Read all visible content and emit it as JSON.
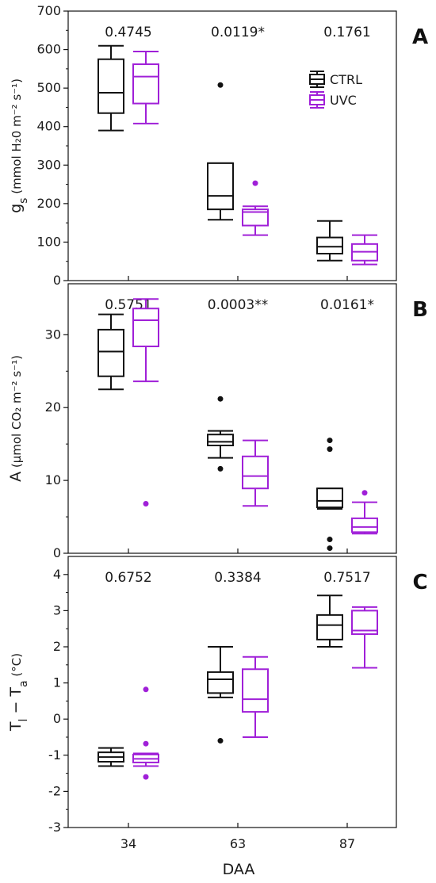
{
  "colors": {
    "ctrl": "#111111",
    "uvc": "#a020d8"
  },
  "legend": [
    {
      "label": "CTRL",
      "color": "#111111"
    },
    {
      "label": "UVC",
      "color": "#a020d8"
    }
  ],
  "xlabel": "DAA",
  "categories": [
    "34",
    "63",
    "87"
  ],
  "chart_data": [
    {
      "type": "box",
      "panel": "A",
      "ylabel_main": "g",
      "ylabel_sub": "s",
      "ylabel_unit": " (mmol H₂0 m⁻² s⁻¹)",
      "ylim": [
        0,
        700
      ],
      "yticks": [
        0,
        100,
        200,
        300,
        400,
        500,
        600,
        700
      ],
      "categories": [
        "34",
        "63",
        "87"
      ],
      "pvalues": [
        "0.4745",
        "0.0119*",
        "0.1761"
      ],
      "legend_position": "top-right",
      "series": [
        {
          "name": "CTRL",
          "boxes": [
            {
              "min": 390,
              "q1": 435,
              "median": 488,
              "q3": 575,
              "max": 610,
              "outliers": []
            },
            {
              "min": 158,
              "q1": 185,
              "median": 220,
              "q3": 305,
              "max": 305,
              "outliers": [
                508
              ]
            },
            {
              "min": 52,
              "q1": 70,
              "median": 88,
              "q3": 112,
              "max": 155,
              "outliers": []
            }
          ]
        },
        {
          "name": "UVC",
          "boxes": [
            {
              "min": 408,
              "q1": 460,
              "median": 530,
              "q3": 562,
              "max": 595,
              "outliers": []
            },
            {
              "min": 118,
              "q1": 143,
              "median": 178,
              "q3": 185,
              "max": 193,
              "outliers": [
                253
              ]
            },
            {
              "min": 42,
              "q1": 52,
              "median": 75,
              "q3": 95,
              "max": 118,
              "outliers": []
            }
          ]
        }
      ]
    },
    {
      "type": "box",
      "panel": "B",
      "ylabel_main": "A",
      "ylabel_sub": "",
      "ylabel_unit": " (µmol CO₂ m⁻² s⁻¹)",
      "ylim": [
        0,
        37
      ],
      "yticks": [
        0,
        10,
        20,
        30
      ],
      "categories": [
        "34",
        "63",
        "87"
      ],
      "pvalues": [
        "0.5751",
        "0.0003**",
        "0.0161*"
      ],
      "series": [
        {
          "name": "CTRL",
          "boxes": [
            {
              "min": 22.5,
              "q1": 24.3,
              "median": 27.7,
              "q3": 30.7,
              "max": 32.8,
              "outliers": []
            },
            {
              "min": 13.1,
              "q1": 14.8,
              "median": 15.3,
              "q3": 16.3,
              "max": 16.8,
              "outliers": [
                21.2,
                11.6
              ]
            },
            {
              "min": 6.1,
              "q1": 6.3,
              "median": 7.2,
              "q3": 8.9,
              "max": 8.9,
              "outliers": [
                15.5,
                14.3,
                1.9,
                0.7
              ]
            }
          ]
        },
        {
          "name": "UVC",
          "boxes": [
            {
              "min": 23.6,
              "q1": 28.4,
              "median": 32.0,
              "q3": 33.6,
              "max": 34.9,
              "outliers": [
                6.8
              ]
            },
            {
              "min": 6.5,
              "q1": 8.9,
              "median": 10.6,
              "q3": 13.3,
              "max": 15.5,
              "outliers": []
            },
            {
              "min": 2.7,
              "q1": 2.9,
              "median": 3.6,
              "q3": 4.8,
              "max": 7.0,
              "outliers": [
                8.3
              ]
            }
          ]
        }
      ]
    },
    {
      "type": "box",
      "panel": "C",
      "ylabel_main": "T",
      "ylabel_sub": "l",
      "ylabel_mid": " − T",
      "ylabel_sub2": "a",
      "ylabel_unit": " (°C)",
      "ylim": [
        -3,
        4.5
      ],
      "yticks": [
        -3,
        -2,
        -1,
        0,
        1,
        2,
        3,
        4
      ],
      "categories": [
        "34",
        "63",
        "87"
      ],
      "pvalues": [
        "0.6752",
        "0.3384",
        "0.7517"
      ],
      "series": [
        {
          "name": "CTRL",
          "boxes": [
            {
              "min": -1.3,
              "q1": -1.18,
              "median": -1.05,
              "q3": -0.92,
              "max": -0.8,
              "outliers": []
            },
            {
              "min": 0.6,
              "q1": 0.72,
              "median": 1.1,
              "q3": 1.3,
              "max": 2.0,
              "outliers": [
                -0.6
              ]
            },
            {
              "min": 2.0,
              "q1": 2.2,
              "median": 2.6,
              "q3": 2.88,
              "max": 3.42,
              "outliers": []
            }
          ]
        },
        {
          "name": "UVC",
          "boxes": [
            {
              "min": -1.3,
              "q1": -1.2,
              "median": -1.1,
              "q3": -0.98,
              "max": -0.95,
              "outliers": [
                0.82,
                -0.68,
                -1.6
              ]
            },
            {
              "min": -0.5,
              "q1": 0.2,
              "median": 0.55,
              "q3": 1.38,
              "max": 1.72,
              "outliers": []
            },
            {
              "min": 1.42,
              "q1": 2.35,
              "median": 2.45,
              "q3": 3.0,
              "max": 3.1,
              "outliers": []
            }
          ]
        }
      ]
    }
  ]
}
